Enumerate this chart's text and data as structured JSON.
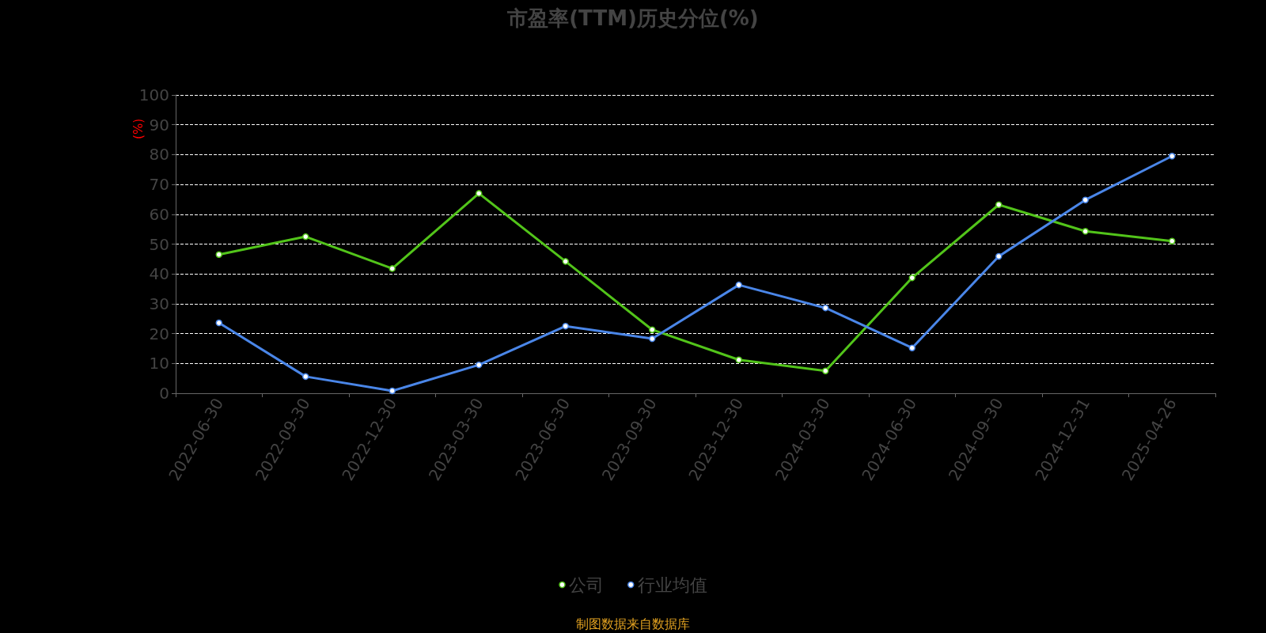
{
  "chart_data": {
    "type": "line",
    "title": "市盈率(TTM)历史分位(%)",
    "ylabel": "(%)",
    "categories": [
      "2022-06-30",
      "2022-09-30",
      "2022-12-30",
      "2023-03-30",
      "2023-06-30",
      "2023-09-30",
      "2023-12-30",
      "2024-03-30",
      "2024-06-30",
      "2024-09-30",
      "2024-12-31",
      "2025-04-26"
    ],
    "series": [
      {
        "name": "公司",
        "color": "#52c41a",
        "values": [
          46.5,
          52.5,
          41.8,
          67,
          44.2,
          21.3,
          11.2,
          7.5,
          38.7,
          63.2,
          54.3,
          51
        ]
      },
      {
        "name": "行业均值",
        "color": "#4a86e8",
        "values": [
          23.6,
          5.6,
          0.8,
          9.5,
          22.5,
          18.3,
          36.3,
          28.6,
          15.2,
          45.9,
          64.8,
          79.5
        ]
      }
    ],
    "ylim": [
      0,
      100
    ],
    "yticks": [
      0,
      10,
      20,
      30,
      40,
      50,
      60,
      70,
      80,
      90,
      100
    ],
    "grid": "y",
    "legend": "bottom",
    "marker": "circle",
    "line_style": "solid",
    "annotations": [
      "制图数据来自数据库"
    ]
  }
}
